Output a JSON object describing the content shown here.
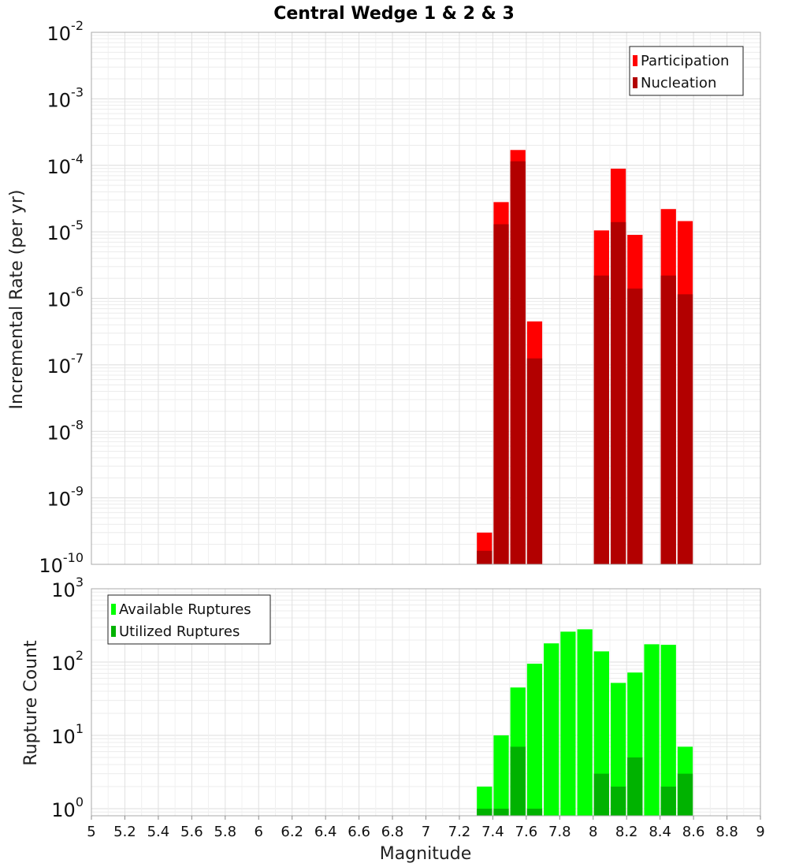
{
  "chart_data": [
    {
      "type": "bar",
      "title": "Central Wedge 1 & 2 & 3",
      "ylabel": "Incremental Rate (per yr)",
      "yscale": "log",
      "ylim": [
        1e-10,
        0.01
      ],
      "xlim": [
        5,
        9
      ],
      "bar_width": 0.1,
      "yticks": [
        {
          "base": "10",
          "exp": "-10"
        },
        {
          "base": "10",
          "exp": "-9"
        },
        {
          "base": "10",
          "exp": "-8"
        },
        {
          "base": "10",
          "exp": "-7"
        },
        {
          "base": "10",
          "exp": "-6"
        },
        {
          "base": "10",
          "exp": "-5"
        },
        {
          "base": "10",
          "exp": "-4"
        },
        {
          "base": "10",
          "exp": "-3"
        },
        {
          "base": "10",
          "exp": "-2"
        }
      ],
      "legend_position": "top-right",
      "series": [
        {
          "name": "Participation",
          "color": "#ff0000",
          "x": [
            7.35,
            7.45,
            7.55,
            7.65,
            8.05,
            8.15,
            8.25,
            8.45,
            8.55
          ],
          "values": [
            3e-10,
            2.8e-05,
            0.00017,
            4.5e-07,
            1.05e-05,
            8.9e-05,
            9e-06,
            2.2e-05,
            1.45e-05
          ]
        },
        {
          "name": "Nucleation",
          "color": "#b20000",
          "x": [
            7.35,
            7.45,
            7.55,
            7.65,
            8.05,
            8.15,
            8.25,
            8.45,
            8.55
          ],
          "values": [
            1.6e-10,
            1.3e-05,
            0.000115,
            1.25e-07,
            2.2e-06,
            1.4e-05,
            1.4e-06,
            2.2e-06,
            1.15e-06
          ]
        }
      ]
    },
    {
      "type": "bar",
      "xlabel": "Magnitude",
      "ylabel": "Rupture Count",
      "yscale": "log",
      "ylim": [
        0.8,
        1000
      ],
      "xlim": [
        5,
        9
      ],
      "bar_width": 0.1,
      "xticks": [
        "5",
        "5.2",
        "5.4",
        "5.6",
        "5.8",
        "6",
        "6.2",
        "6.4",
        "6.6",
        "6.8",
        "7",
        "7.2",
        "7.4",
        "7.6",
        "7.8",
        "8",
        "8.2",
        "8.4",
        "8.6",
        "8.8",
        "9"
      ],
      "yticks": [
        {
          "base": "10",
          "exp": "0"
        },
        {
          "base": "10",
          "exp": "1"
        },
        {
          "base": "10",
          "exp": "2"
        },
        {
          "base": "10",
          "exp": "3"
        }
      ],
      "legend_position": "top-left",
      "series": [
        {
          "name": "Available Ruptures",
          "color": "#00ff00",
          "x": [
            7.35,
            7.45,
            7.55,
            7.65,
            7.75,
            7.85,
            7.95,
            8.05,
            8.15,
            8.25,
            8.35,
            8.45,
            8.55
          ],
          "values": [
            2,
            10,
            45,
            95,
            180,
            260,
            280,
            140,
            52,
            72,
            175,
            172,
            7
          ]
        },
        {
          "name": "Utilized Ruptures",
          "color": "#00b200",
          "x": [
            7.35,
            7.45,
            7.55,
            7.65,
            7.75,
            7.85,
            7.95,
            8.05,
            8.15,
            8.25,
            8.35,
            8.45,
            8.55
          ],
          "values": [
            1,
            1,
            7,
            1,
            0,
            0,
            0,
            3,
            2,
            5,
            0,
            2,
            3
          ]
        }
      ]
    }
  ]
}
